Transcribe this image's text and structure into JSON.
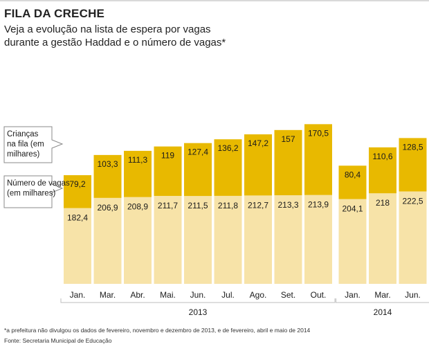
{
  "chart_data": {
    "type": "bar",
    "stacked": true,
    "title": "FILA DA CRECHE",
    "subtitle_line1": "Veja a evolução na lista de espera por vagas",
    "subtitle_line2": "durante a gestão Haddad e o número de vagas*",
    "categories": [
      "Jan.",
      "Mar.",
      "Abr.",
      "Mai.",
      "Jun.",
      "Jul.",
      "Ago.",
      "Set.",
      "Out.",
      "Jan.",
      "Mar.",
      "Jun."
    ],
    "groups": [
      {
        "label": "2013",
        "count": 9
      },
      {
        "label": "2014",
        "count": 3
      }
    ],
    "series": [
      {
        "name": "Número de vagas (em milhares)",
        "legend_lines": [
          "Número de vagas",
          "(em milhares)"
        ],
        "color": "#f7e3a8",
        "values": [
          182.4,
          206.9,
          208.9,
          211.7,
          211.5,
          211.8,
          212.7,
          213.3,
          213.9,
          204.1,
          218,
          222.5
        ],
        "labels": [
          "182,4",
          "206,9",
          "208,9",
          "211,7",
          "211,5",
          "211,8",
          "212,7",
          "213,3",
          "213,9",
          "204,1",
          "218",
          "222,5"
        ]
      },
      {
        "name": "Crianças na fila (em milhares)",
        "legend_lines": [
          "Crianças",
          "na fila (em",
          "milhares)"
        ],
        "color": "#e8b900",
        "values": [
          79.2,
          103.3,
          111.3,
          119,
          127.4,
          136.2,
          147.2,
          157,
          170.5,
          80.4,
          110.6,
          128.5
        ],
        "labels": [
          "79,2",
          "103,3",
          "111,3",
          "119",
          "127,4",
          "136,2",
          "147,2",
          "157",
          "170,5",
          "80,4",
          "110,6",
          "128,5"
        ]
      }
    ],
    "ylim": [
      0,
      400
    ],
    "footnote": "*a prefeitura não divulgou os dados de fevereiro, novembro e dezembro de 2013, e de fevereiro, abril e maio de 2014",
    "source": "Fonte: Secretaria Municipal de Educação"
  }
}
